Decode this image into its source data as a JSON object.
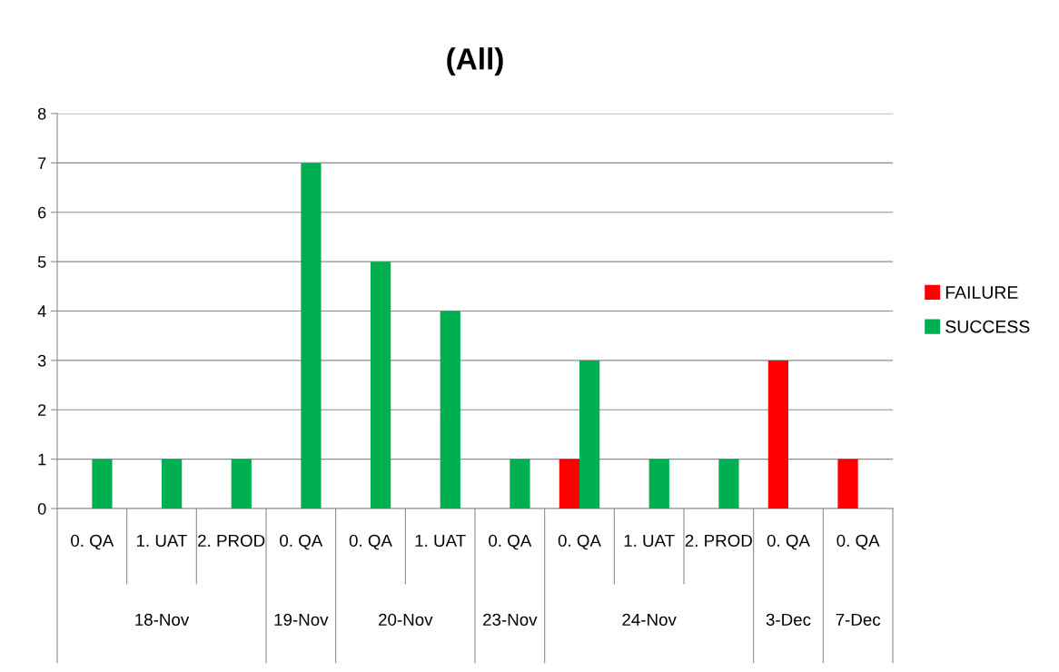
{
  "chart_data": {
    "type": "bar",
    "title": "(All)",
    "categories": [
      "0. QA",
      "1. UAT",
      "2. PROD",
      "0. QA",
      "0. QA",
      "1. UAT",
      "0. QA",
      "0. QA",
      "1. UAT",
      "2. PROD",
      "0. QA",
      "0. QA"
    ],
    "series": [
      {
        "name": "FAILURE",
        "color": "#ff0000",
        "values": [
          null,
          null,
          null,
          null,
          null,
          null,
          null,
          1,
          null,
          null,
          3,
          1
        ]
      },
      {
        "name": "SUCCESS",
        "color": "#00b050",
        "values": [
          1,
          1,
          1,
          7,
          5,
          4,
          1,
          3,
          1,
          1,
          null,
          null
        ]
      }
    ],
    "annotations": [
      "18-Nov",
      "19-Nov",
      "20-Nov",
      "23-Nov",
      "24-Nov",
      "3-Dec",
      "7-Dec"
    ],
    "ylim": [
      0,
      8
    ],
    "yticks": [
      0,
      1,
      2,
      3,
      4,
      5,
      6,
      7,
      8
    ],
    "grid": "y",
    "legend": "right"
  }
}
